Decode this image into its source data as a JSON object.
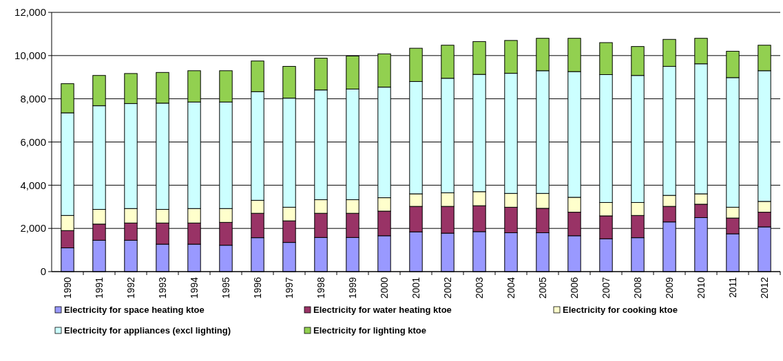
{
  "chart_data": {
    "type": "bar",
    "stacked": true,
    "categories": [
      "1990",
      "1991",
      "1992",
      "1993",
      "1994",
      "1995",
      "1996",
      "1997",
      "1998",
      "1999",
      "2000",
      "2001",
      "2002",
      "2003",
      "2004",
      "2005",
      "2006",
      "2007",
      "2008",
      "2009",
      "2010",
      "2011",
      "2012"
    ],
    "series": [
      {
        "name": "Electricity for space heating ktoe",
        "color": "#9999ff",
        "values": [
          1100,
          1450,
          1450,
          1270,
          1270,
          1220,
          1570,
          1350,
          1580,
          1580,
          1660,
          1840,
          1780,
          1850,
          1800,
          1800,
          1660,
          1520,
          1570,
          2300,
          2500,
          1750,
          2070
        ]
      },
      {
        "name": "Electricity for water heating ktoe",
        "color": "#993366",
        "values": [
          800,
          750,
          800,
          980,
          980,
          1060,
          1130,
          1000,
          1120,
          1120,
          1140,
          1180,
          1240,
          1200,
          1180,
          1130,
          1090,
          1060,
          1030,
          720,
          620,
          730,
          680
        ]
      },
      {
        "name": "Electricity for cooking ktoe",
        "color": "#ffffcc",
        "values": [
          700,
          680,
          670,
          630,
          670,
          640,
          600,
          630,
          630,
          630,
          620,
          580,
          630,
          650,
          640,
          690,
          690,
          620,
          600,
          510,
          480,
          500,
          500
        ]
      },
      {
        "name": "Electricity for appliances (excl lighting)",
        "color": "#ccffff",
        "values": [
          4750,
          4800,
          4860,
          4920,
          4930,
          4930,
          5030,
          5050,
          5080,
          5120,
          5120,
          5200,
          5300,
          5430,
          5560,
          5680,
          5820,
          5920,
          5880,
          5970,
          6020,
          6000,
          6050
        ]
      },
      {
        "name": "Electricity for lighting ktoe",
        "color": "#92d050",
        "values": [
          1350,
          1400,
          1390,
          1420,
          1450,
          1450,
          1420,
          1470,
          1470,
          1530,
          1540,
          1540,
          1530,
          1520,
          1520,
          1500,
          1540,
          1480,
          1340,
          1250,
          1180,
          1220,
          1180
        ]
      }
    ],
    "ylim": [
      0,
      12000
    ],
    "yticks": [
      {
        "value": 0,
        "label": "0"
      },
      {
        "value": 2000,
        "label": "2,000"
      },
      {
        "value": 4000,
        "label": "4,000"
      },
      {
        "value": 6000,
        "label": "6,000"
      },
      {
        "value": 8000,
        "label": "8,000"
      },
      {
        "value": 10000,
        "label": "10,000"
      },
      {
        "value": 12000,
        "label": "12,000"
      }
    ],
    "grid": "y",
    "legend": "bottom"
  }
}
